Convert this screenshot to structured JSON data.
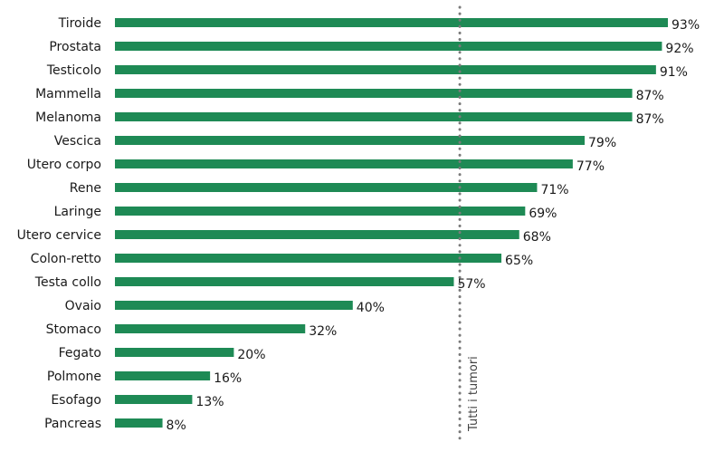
{
  "chart_data": {
    "type": "bar",
    "orientation": "horizontal",
    "categories": [
      "Tiroide",
      "Prostata",
      "Testicolo",
      "Mammella",
      "Melanoma",
      "Vescica",
      "Utero corpo",
      "Rene",
      "Laringe",
      "Utero cervice",
      "Colon-retto",
      "Testa collo",
      "Ovaio",
      "Stomaco",
      "Fegato",
      "Polmone",
      "Esofago",
      "Pancreas"
    ],
    "values": [
      93,
      92,
      91,
      87,
      87,
      79,
      77,
      71,
      69,
      68,
      65,
      57,
      40,
      32,
      20,
      16,
      13,
      8
    ],
    "value_labels": [
      "93%",
      "92%",
      "91%",
      "87%",
      "87%",
      "79%",
      "77%",
      "71%",
      "69%",
      "68%",
      "65%",
      "57%",
      "40%",
      "32%",
      "20%",
      "16%",
      "13%",
      "8%"
    ],
    "title": "",
    "xlabel": "",
    "ylabel": "",
    "xlim": [
      0,
      93
    ],
    "grid": false,
    "bar_color": "#1e8a55",
    "reference_line": {
      "label": "Tutti i tumori",
      "value": 58,
      "color": "#7a7a7a"
    }
  }
}
